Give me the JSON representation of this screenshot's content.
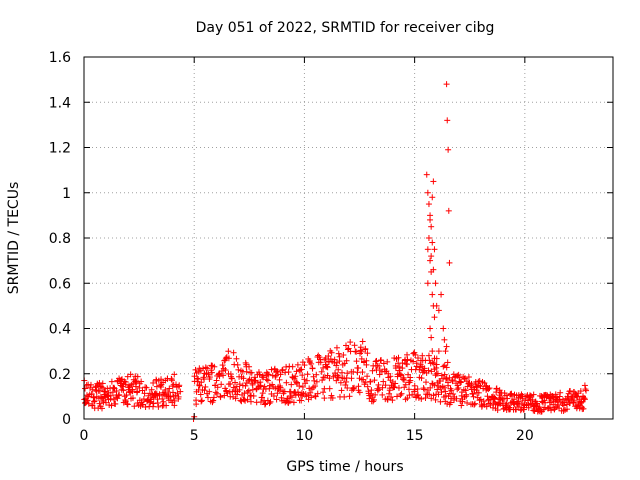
{
  "chart_data": {
    "type": "scatter",
    "title": "Day 051 of 2022, SRMTID for receiver cibg",
    "xlabel": "GPS time / hours",
    "ylabel": "SRMTID / TECUs",
    "xlim": [
      0,
      24
    ],
    "ylim": [
      0,
      1.6
    ],
    "xticks": [
      0,
      5,
      10,
      15,
      20
    ],
    "xtick_labels": [
      "0",
      "5",
      "10",
      "15",
      "20"
    ],
    "yticks": [
      0,
      0.2,
      0.4,
      0.6,
      0.8,
      1.0,
      1.2,
      1.4,
      1.6
    ],
    "ytick_labels": [
      "0",
      "0.2",
      "0.4",
      "0.6",
      "0.8",
      "1",
      "1.2",
      "1.4",
      "1.6"
    ],
    "grid": true,
    "marker": "+",
    "colors": {
      "series": "#ff0000",
      "axis": "#000000",
      "grid": "#a0a0a0"
    },
    "series": [
      {
        "name": "cibg",
        "trend": [
          [
            0.0,
            0.11
          ],
          [
            1.0,
            0.1
          ],
          [
            2.0,
            0.13
          ],
          [
            3.0,
            0.11
          ],
          [
            4.0,
            0.13
          ],
          [
            4.3,
            0.12
          ],
          [
            5.0,
            0.14
          ],
          [
            6.0,
            0.17
          ],
          [
            6.5,
            0.22
          ],
          [
            7.0,
            0.17
          ],
          [
            8.0,
            0.14
          ],
          [
            9.0,
            0.15
          ],
          [
            10.0,
            0.17
          ],
          [
            11.0,
            0.19
          ],
          [
            12.0,
            0.22
          ],
          [
            12.5,
            0.24
          ],
          [
            13.0,
            0.17
          ],
          [
            14.0,
            0.18
          ],
          [
            15.0,
            0.19
          ],
          [
            15.5,
            0.2
          ],
          [
            16.6,
            0.14
          ],
          [
            17.0,
            0.13
          ],
          [
            18.0,
            0.11
          ],
          [
            19.0,
            0.08
          ],
          [
            20.0,
            0.07
          ],
          [
            21.0,
            0.07
          ],
          [
            22.0,
            0.08
          ],
          [
            22.8,
            0.1
          ]
        ],
        "points": [
          [
            4.97,
            0.0
          ],
          [
            5.0,
            0.01
          ],
          [
            15.55,
            1.08
          ],
          [
            15.6,
            1.0
          ],
          [
            15.65,
            0.95
          ],
          [
            15.7,
            0.9
          ],
          [
            15.75,
            0.85
          ],
          [
            15.8,
            0.98
          ],
          [
            15.85,
            1.05
          ],
          [
            15.65,
            0.8
          ],
          [
            15.7,
            0.7
          ],
          [
            15.75,
            0.65
          ],
          [
            15.6,
            0.6
          ],
          [
            15.8,
            0.55
          ],
          [
            15.85,
            0.5
          ],
          [
            15.9,
            0.45
          ],
          [
            15.7,
            0.4
          ],
          [
            15.75,
            0.36
          ],
          [
            15.8,
            0.3
          ],
          [
            15.65,
            0.28
          ],
          [
            15.9,
            0.75
          ],
          [
            15.95,
            0.6
          ],
          [
            16.0,
            0.5
          ],
          [
            16.1,
            0.48
          ],
          [
            16.2,
            0.55
          ],
          [
            16.3,
            0.4
          ],
          [
            16.35,
            0.35
          ],
          [
            16.4,
            0.3
          ],
          [
            16.45,
            0.32
          ],
          [
            16.5,
            0.25
          ],
          [
            15.9,
            0.22
          ],
          [
            16.0,
            0.2
          ],
          [
            16.1,
            0.3
          ],
          [
            15.6,
            0.75
          ],
          [
            15.7,
            0.88
          ],
          [
            15.8,
            0.78
          ],
          [
            15.75,
            0.72
          ],
          [
            15.85,
            0.66
          ],
          [
            16.45,
            1.48
          ],
          [
            16.48,
            1.32
          ],
          [
            16.52,
            1.19
          ],
          [
            16.55,
            0.92
          ],
          [
            16.58,
            0.69
          ]
        ]
      }
    ]
  }
}
